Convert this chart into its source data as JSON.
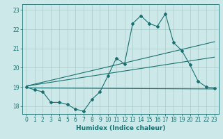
{
  "title": "",
  "xlabel": "Humidex (Indice chaleur)",
  "bg_color": "#cce8e8",
  "grid_color": "#aacccc",
  "line_color": "#1a7070",
  "xlim": [
    -0.5,
    23.5
  ],
  "ylim": [
    17.6,
    23.3
  ],
  "xticks": [
    0,
    1,
    2,
    3,
    4,
    5,
    6,
    7,
    8,
    9,
    10,
    11,
    12,
    13,
    14,
    15,
    16,
    17,
    18,
    19,
    20,
    21,
    22,
    23
  ],
  "yticks": [
    18,
    19,
    20,
    21,
    22,
    23
  ],
  "main_line": {
    "x": [
      0,
      1,
      2,
      3,
      4,
      5,
      6,
      7,
      8,
      9,
      10,
      11,
      12,
      13,
      14,
      15,
      16,
      17,
      18,
      19,
      20,
      21,
      22,
      23
    ],
    "y": [
      19.0,
      18.85,
      18.75,
      18.2,
      18.2,
      18.1,
      17.85,
      17.75,
      18.35,
      18.75,
      19.6,
      20.5,
      20.2,
      22.3,
      22.7,
      22.3,
      22.15,
      22.8,
      21.3,
      20.9,
      20.15,
      19.3,
      19.0,
      18.95
    ]
  },
  "trend_line1": {
    "x": [
      0,
      23
    ],
    "y": [
      19.05,
      21.35
    ]
  },
  "trend_line2": {
    "x": [
      0,
      23
    ],
    "y": [
      19.05,
      20.55
    ]
  },
  "trend_line3": {
    "x": [
      0,
      23
    ],
    "y": [
      18.95,
      18.9
    ]
  }
}
